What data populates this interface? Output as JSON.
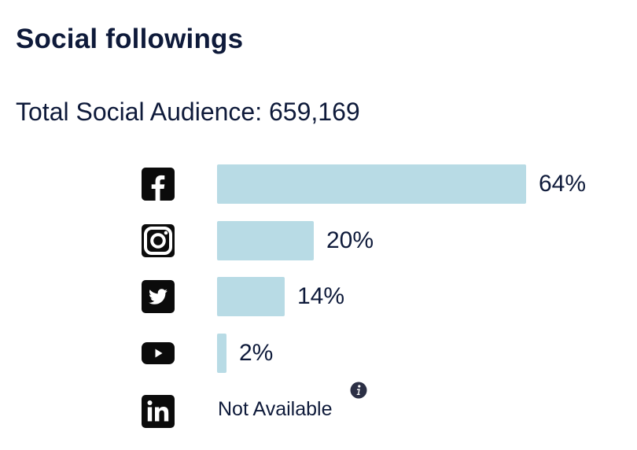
{
  "title": "Social followings",
  "total_label": "Total Social Audience: 659,169",
  "colors": {
    "bar": "#b8dbe5",
    "text": "#0e1a3a",
    "icon": "#0b0b0b"
  },
  "chart_data": {
    "type": "bar",
    "orientation": "horizontal",
    "categories": [
      "facebook",
      "instagram",
      "twitter",
      "youtube",
      "linkedin"
    ],
    "values": [
      64,
      20,
      14,
      2,
      null
    ],
    "value_labels": [
      "64%",
      "20%",
      "14%",
      "2%",
      "Not Available"
    ],
    "xlim": [
      0,
      64
    ],
    "grid": false,
    "legend": "none"
  },
  "rows": [
    {
      "icon": "facebook-icon",
      "label": "64%"
    },
    {
      "icon": "instagram-icon",
      "label": "20%"
    },
    {
      "icon": "twitter-icon",
      "label": "14%"
    },
    {
      "icon": "youtube-icon",
      "label": "2%"
    },
    {
      "icon": "linkedin-icon",
      "label": "Not Available",
      "info_icon": "info-icon"
    }
  ]
}
